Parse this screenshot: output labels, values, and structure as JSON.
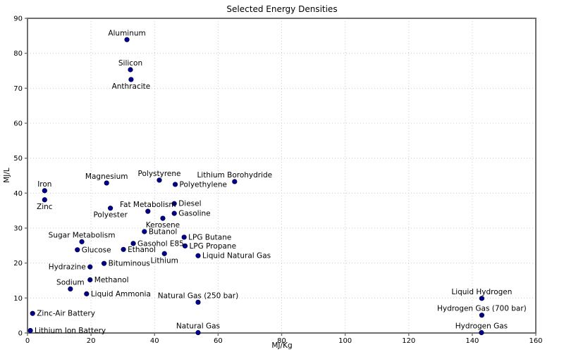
{
  "chart_data": {
    "type": "scatter",
    "title": "Selected Energy Densities",
    "xlabel": "MJ/Kg",
    "ylabel": "MJ/L",
    "xlim": [
      0,
      160
    ],
    "ylim": [
      0,
      90
    ],
    "xticks": [
      0,
      20,
      40,
      60,
      80,
      100,
      120,
      140,
      160
    ],
    "yticks": [
      0,
      10,
      20,
      30,
      40,
      50,
      60,
      70,
      80,
      90
    ],
    "grid": "dotted",
    "legend": "none",
    "colors": {
      "marker": "#00008b",
      "marker_edge": "#000050",
      "grid": "#cccccc",
      "spine": "#6e6e6e",
      "text": "#000000",
      "background": "#ffffff"
    },
    "points": [
      {
        "name": "Aluminum",
        "x": 31.3,
        "y": 83.9,
        "label_pos": "above"
      },
      {
        "name": "Silicon",
        "x": 32.4,
        "y": 75.3,
        "label_pos": "above"
      },
      {
        "name": "Anthracite",
        "x": 32.6,
        "y": 72.5,
        "label_pos": "below"
      },
      {
        "name": "Iron",
        "x": 5.4,
        "y": 40.7,
        "label_pos": "above"
      },
      {
        "name": "Zinc",
        "x": 5.4,
        "y": 38.1,
        "label_pos": "below"
      },
      {
        "name": "Magnesium",
        "x": 24.9,
        "y": 42.9,
        "label_pos": "above"
      },
      {
        "name": "Polystyrene",
        "x": 41.5,
        "y": 43.7,
        "label_pos": "above"
      },
      {
        "name": "Polyethylene",
        "x": 46.5,
        "y": 42.5,
        "label_pos": "right"
      },
      {
        "name": "Lithium Borohydride",
        "x": 65.2,
        "y": 43.3,
        "label_pos": "above"
      },
      {
        "name": "Diesel",
        "x": 46.2,
        "y": 37.0,
        "label_pos": "right"
      },
      {
        "name": "Fat Metabolism",
        "x": 37.9,
        "y": 34.8,
        "label_pos": "above"
      },
      {
        "name": "Polyester",
        "x": 26.1,
        "y": 35.7,
        "label_pos": "below"
      },
      {
        "name": "Gasoline",
        "x": 46.2,
        "y": 34.2,
        "label_pos": "right"
      },
      {
        "name": "Kerosene",
        "x": 42.6,
        "y": 32.8,
        "label_pos": "below"
      },
      {
        "name": "Butanol",
        "x": 36.8,
        "y": 29.0,
        "label_pos": "right"
      },
      {
        "name": "LPG Butane",
        "x": 49.3,
        "y": 27.4,
        "label_pos": "right"
      },
      {
        "name": "LPG Propane",
        "x": 49.6,
        "y": 24.9,
        "label_pos": "right"
      },
      {
        "name": "Sugar Metabolism",
        "x": 17.1,
        "y": 26.1,
        "label_pos": "above"
      },
      {
        "name": "Gasohol E85",
        "x": 33.3,
        "y": 25.6,
        "label_pos": "right"
      },
      {
        "name": "Glucose",
        "x": 15.7,
        "y": 23.8,
        "label_pos": "right"
      },
      {
        "name": "Ethanol",
        "x": 30.2,
        "y": 23.9,
        "label_pos": "right"
      },
      {
        "name": "Lithium",
        "x": 43.1,
        "y": 22.7,
        "label_pos": "below"
      },
      {
        "name": "Liquid Natural Gas",
        "x": 53.7,
        "y": 22.1,
        "label_pos": "right"
      },
      {
        "name": "Hydrazine",
        "x": 19.7,
        "y": 18.9,
        "label_pos": "left"
      },
      {
        "name": "Bituminous",
        "x": 24.1,
        "y": 19.9,
        "label_pos": "right"
      },
      {
        "name": "Methanol",
        "x": 19.7,
        "y": 15.2,
        "label_pos": "right"
      },
      {
        "name": "Sodium",
        "x": 13.5,
        "y": 12.6,
        "label_pos": "above"
      },
      {
        "name": "Liquid Ammonia",
        "x": 18.6,
        "y": 11.2,
        "label_pos": "right"
      },
      {
        "name": "Natural Gas (250 bar)",
        "x": 53.7,
        "y": 8.8,
        "label_pos": "above"
      },
      {
        "name": "Natural Gas",
        "x": 53.7,
        "y": 0.1,
        "label_pos": "above"
      },
      {
        "name": "Zinc-Air Battery",
        "x": 1.6,
        "y": 5.6,
        "label_pos": "right"
      },
      {
        "name": "Lithium Ion Battery",
        "x": 0.9,
        "y": 0.7,
        "label_pos": "right"
      },
      {
        "name": "Liquid Hydrogen",
        "x": 143.0,
        "y": 9.9,
        "label_pos": "above"
      },
      {
        "name": "Hydrogen Gas (700 bar)",
        "x": 143.0,
        "y": 5.1,
        "label_pos": "above"
      },
      {
        "name": "Hydrogen Gas",
        "x": 142.9,
        "y": 0.1,
        "label_pos": "above"
      }
    ]
  }
}
